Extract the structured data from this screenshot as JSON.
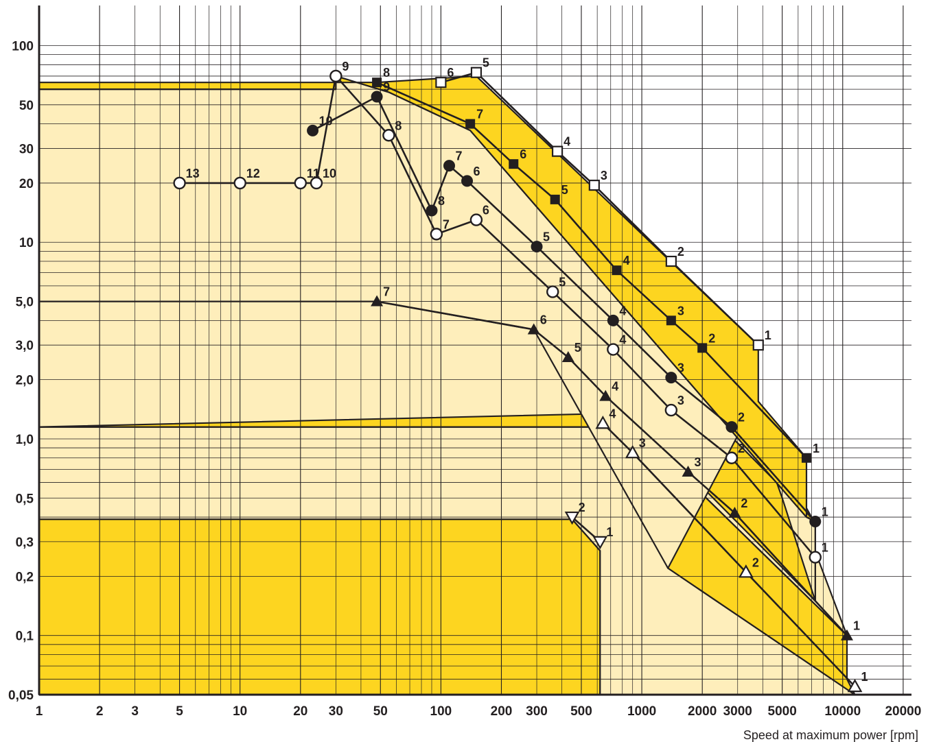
{
  "chart_data": {
    "type": "line",
    "x_scale": "log",
    "y_scale": "log",
    "xlim": [
      1,
      22000
    ],
    "ylim": [
      0.05,
      160
    ],
    "xlabel": "Speed at maximum power [rpm]",
    "ylabel": "",
    "grid": true,
    "legend": "none",
    "colors": {
      "dark_band": "#fdd520",
      "light_band": "#feeebb",
      "line": "#231f20",
      "grid": "#231f20"
    },
    "x_ticks": [
      {
        "value": 1,
        "label": "1"
      },
      {
        "value": 2,
        "label": "2"
      },
      {
        "value": 3,
        "label": "3"
      },
      {
        "value": 5,
        "label": "5"
      },
      {
        "value": 10,
        "label": "10"
      },
      {
        "value": 20,
        "label": "20"
      },
      {
        "value": 30,
        "label": "30"
      },
      {
        "value": 50,
        "label": "50"
      },
      {
        "value": 100,
        "label": "100"
      },
      {
        "value": 200,
        "label": "200"
      },
      {
        "value": 300,
        "label": "300"
      },
      {
        "value": 500,
        "label": "500"
      },
      {
        "value": 1000,
        "label": "1000"
      },
      {
        "value": 2000,
        "label": "2000"
      },
      {
        "value": 3000,
        "label": "3000"
      },
      {
        "value": 5000,
        "label": "5000"
      },
      {
        "value": 10000,
        "label": "10000"
      },
      {
        "value": 20000,
        "label": "20000"
      }
    ],
    "y_ticks": [
      {
        "value": 0.05,
        "label": "0,05"
      },
      {
        "value": 0.1,
        "label": "0,1"
      },
      {
        "value": 0.2,
        "label": "0,2"
      },
      {
        "value": 0.3,
        "label": "0,3"
      },
      {
        "value": 0.5,
        "label": "0,5"
      },
      {
        "value": 1,
        "label": "1,0"
      },
      {
        "value": 2,
        "label": "2,0"
      },
      {
        "value": 3,
        "label": "3,0"
      },
      {
        "value": 5,
        "label": "5,0"
      },
      {
        "value": 10,
        "label": "10"
      },
      {
        "value": 20,
        "label": "20"
      },
      {
        "value": 30,
        "label": "30"
      },
      {
        "value": 50,
        "label": "50"
      },
      {
        "value": 100,
        "label": "100"
      }
    ],
    "bands": [
      {
        "fill": "dark",
        "points": [
          [
            1,
            0.39
          ],
          [
            450,
            0.39
          ],
          [
            620,
            0.27
          ],
          [
            620,
            0.05
          ],
          [
            1,
            0.05
          ]
        ]
      },
      {
        "fill": "light",
        "points": [
          [
            1,
            1.15
          ],
          [
            620,
            1.15
          ],
          [
            1350,
            0.22
          ],
          [
            11500,
            0.05
          ],
          [
            620,
            0.05
          ],
          [
            620,
            0.27
          ],
          [
            450,
            0.39
          ],
          [
            1,
            0.39
          ]
        ]
      },
      {
        "fill": "dark",
        "points": [
          [
            1,
            5.0
          ],
          [
            48,
            5.0
          ],
          [
            290,
            3.6
          ],
          [
            10500,
            0.1
          ],
          [
            10500,
            0.06
          ],
          [
            11500,
            0.05
          ],
          [
            1350,
            0.22
          ],
          [
            620,
            1.15
          ],
          [
            1,
            1.15
          ]
        ]
      },
      {
        "fill": "light",
        "points": [
          [
            1,
            20
          ],
          [
            24,
            20
          ],
          [
            30,
            70
          ],
          [
            48,
            5.0
          ],
          [
            290,
            3.6
          ],
          [
            10500,
            0.1
          ],
          [
            7000,
            0.3
          ],
          [
            7000,
            0.4
          ],
          [
            3500,
            1.4
          ],
          [
            1,
            1.15
          ]
        ]
      },
      {
        "fill": "dark",
        "points": [
          [
            1,
            35
          ],
          [
            23,
            37
          ],
          [
            24,
            20
          ],
          [
            1,
            20
          ]
        ]
      },
      {
        "fill": "dark",
        "points": [
          [
            48,
            58
          ],
          [
            30,
            70
          ],
          [
            45,
            50
          ],
          [
            90,
            15
          ],
          [
            110,
            24
          ],
          [
            150,
            21
          ],
          [
            7300,
            0.38
          ],
          [
            7300,
            0.15
          ],
          [
            300,
            4
          ],
          [
            150,
            12.5
          ],
          [
            95,
            11
          ],
          [
            55,
            35
          ]
        ]
      },
      {
        "fill": "light",
        "points": [
          [
            1,
            60
          ],
          [
            30,
            60
          ],
          [
            30,
            70
          ],
          [
            55,
            58
          ],
          [
            140,
            37
          ],
          [
            6600,
            0.4
          ],
          [
            7300,
            0.38
          ],
          [
            7300,
            0.15
          ],
          [
            5000,
            0.5
          ],
          [
            3500,
            1.4
          ],
          [
            1350,
            0.22
          ],
          [
            290,
            3.6
          ],
          [
            48,
            5.0
          ],
          [
            1,
            5.0
          ]
        ]
      },
      {
        "fill": "dark",
        "points": [
          [
            1,
            65
          ],
          [
            48,
            65
          ],
          [
            150,
            70
          ],
          [
            3800,
            3.0
          ],
          [
            3800,
            1.55
          ],
          [
            6600,
            0.8
          ],
          [
            6600,
            0.4
          ],
          [
            140,
            37
          ],
          [
            55,
            58
          ],
          [
            30,
            70
          ],
          [
            30,
            60
          ],
          [
            1,
            60
          ]
        ]
      }
    ],
    "series": [
      {
        "marker": "open-circle",
        "points": [
          {
            "x": 7300,
            "y": 0.25,
            "label": "1"
          },
          {
            "x": 2800,
            "y": 0.8,
            "label": "2"
          },
          {
            "x": 1400,
            "y": 1.4,
            "label": "3"
          },
          {
            "x": 720,
            "y": 2.85,
            "label": "4"
          },
          {
            "x": 360,
            "y": 5.6,
            "label": "5"
          },
          {
            "x": 150,
            "y": 13,
            "label": "6"
          },
          {
            "x": 95,
            "y": 11,
            "label": "7"
          },
          {
            "x": 55,
            "y": 35,
            "label": "8"
          },
          {
            "x": 30,
            "y": 70,
            "label": "9"
          },
          {
            "x": 24,
            "y": 20,
            "label": "10"
          },
          {
            "x": 20,
            "y": 20,
            "label": "11"
          },
          {
            "x": 10,
            "y": 20,
            "label": "12"
          },
          {
            "x": 5,
            "y": 20,
            "label": "13"
          }
        ]
      },
      {
        "marker": "filled-circle",
        "points": [
          {
            "x": 7300,
            "y": 0.38,
            "label": "1"
          },
          {
            "x": 2800,
            "y": 1.15,
            "label": "2"
          },
          {
            "x": 1400,
            "y": 2.05,
            "label": "3"
          },
          {
            "x": 720,
            "y": 4.0,
            "label": "4"
          },
          {
            "x": 300,
            "y": 9.5,
            "label": "5"
          },
          {
            "x": 135,
            "y": 20.5,
            "label": "6"
          },
          {
            "x": 110,
            "y": 24.5,
            "label": "7"
          },
          {
            "x": 90,
            "y": 14.5,
            "label": "8"
          },
          {
            "x": 48,
            "y": 55,
            "label": "9"
          },
          {
            "x": 23,
            "y": 37,
            "label": "10"
          }
        ]
      },
      {
        "marker": "filled-square",
        "points": [
          {
            "x": 6600,
            "y": 0.8,
            "label": "1"
          },
          {
            "x": 2000,
            "y": 2.9,
            "label": "2"
          },
          {
            "x": 1400,
            "y": 4.0,
            "label": "3"
          },
          {
            "x": 750,
            "y": 7.2,
            "label": "4"
          },
          {
            "x": 370,
            "y": 16.5,
            "label": "5"
          },
          {
            "x": 230,
            "y": 25,
            "label": "6"
          },
          {
            "x": 140,
            "y": 40,
            "label": "7"
          },
          {
            "x": 48,
            "y": 65,
            "label": "8"
          }
        ]
      },
      {
        "marker": "open-square",
        "points": [
          {
            "x": 3800,
            "y": 3.0,
            "label": "1"
          },
          {
            "x": 1400,
            "y": 8.0,
            "label": "2"
          },
          {
            "x": 580,
            "y": 19.5,
            "label": "3"
          },
          {
            "x": 380,
            "y": 29,
            "label": "4"
          },
          {
            "x": 150,
            "y": 73,
            "label": "5"
          },
          {
            "x": 100,
            "y": 65,
            "label": "6"
          }
        ]
      },
      {
        "marker": "filled-triangle-up",
        "points": [
          {
            "x": 10500,
            "y": 0.1,
            "label": "1"
          },
          {
            "x": 2900,
            "y": 0.42,
            "label": "2"
          },
          {
            "x": 1700,
            "y": 0.68,
            "label": "3"
          },
          {
            "x": 660,
            "y": 1.65,
            "label": "4"
          },
          {
            "x": 430,
            "y": 2.6,
            "label": "5"
          },
          {
            "x": 290,
            "y": 3.6,
            "label": "6"
          },
          {
            "x": 48,
            "y": 5.0,
            "label": "7"
          }
        ]
      },
      {
        "marker": "open-triangle-up",
        "points": [
          {
            "x": 11500,
            "y": 0.055,
            "label": "1"
          },
          {
            "x": 3300,
            "y": 0.21,
            "label": "2"
          },
          {
            "x": 900,
            "y": 0.85,
            "label": "3"
          },
          {
            "x": 640,
            "y": 1.2,
            "label": "4"
          }
        ]
      },
      {
        "marker": "open-triangle-down",
        "points": [
          {
            "x": 620,
            "y": 0.3,
            "label": "1"
          },
          {
            "x": 450,
            "y": 0.4,
            "label": "2"
          }
        ]
      }
    ]
  }
}
